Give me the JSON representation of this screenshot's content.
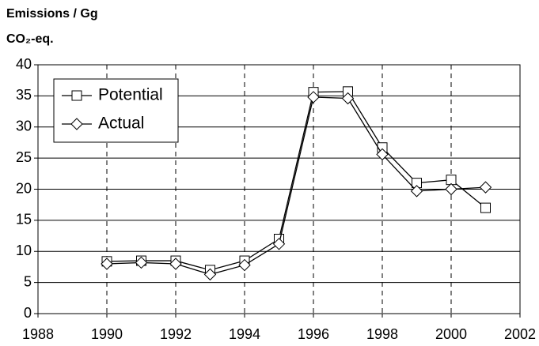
{
  "chart_data": {
    "type": "line",
    "ylabel_lines": [
      "Emissions / Gg",
      "CO₂-eq."
    ],
    "x": [
      1990,
      1991,
      1992,
      1993,
      1994,
      1995,
      1996,
      1997,
      1998,
      1999,
      2000,
      2001
    ],
    "series": [
      {
        "name": "Potential",
        "color": "#000000",
        "marker": "square",
        "values": [
          8.4,
          8.5,
          8.5,
          7.0,
          8.5,
          12.0,
          35.6,
          35.7,
          26.7,
          21.0,
          21.5,
          17.0
        ]
      },
      {
        "name": "Actual",
        "color": "#000000",
        "marker": "diamond",
        "values": [
          8.0,
          8.2,
          8.0,
          6.3,
          7.8,
          11.2,
          34.8,
          34.6,
          25.6,
          19.7,
          20.0,
          20.3
        ]
      }
    ],
    "xlim": [
      1988,
      2002
    ],
    "xticks": [
      1988,
      1990,
      1992,
      1994,
      1996,
      1998,
      2000,
      2002
    ],
    "ylim": [
      0,
      40
    ],
    "yticks": [
      0,
      5,
      10,
      15,
      20,
      25,
      30,
      35,
      40
    ],
    "grid": true,
    "legend_position": "upper left"
  }
}
